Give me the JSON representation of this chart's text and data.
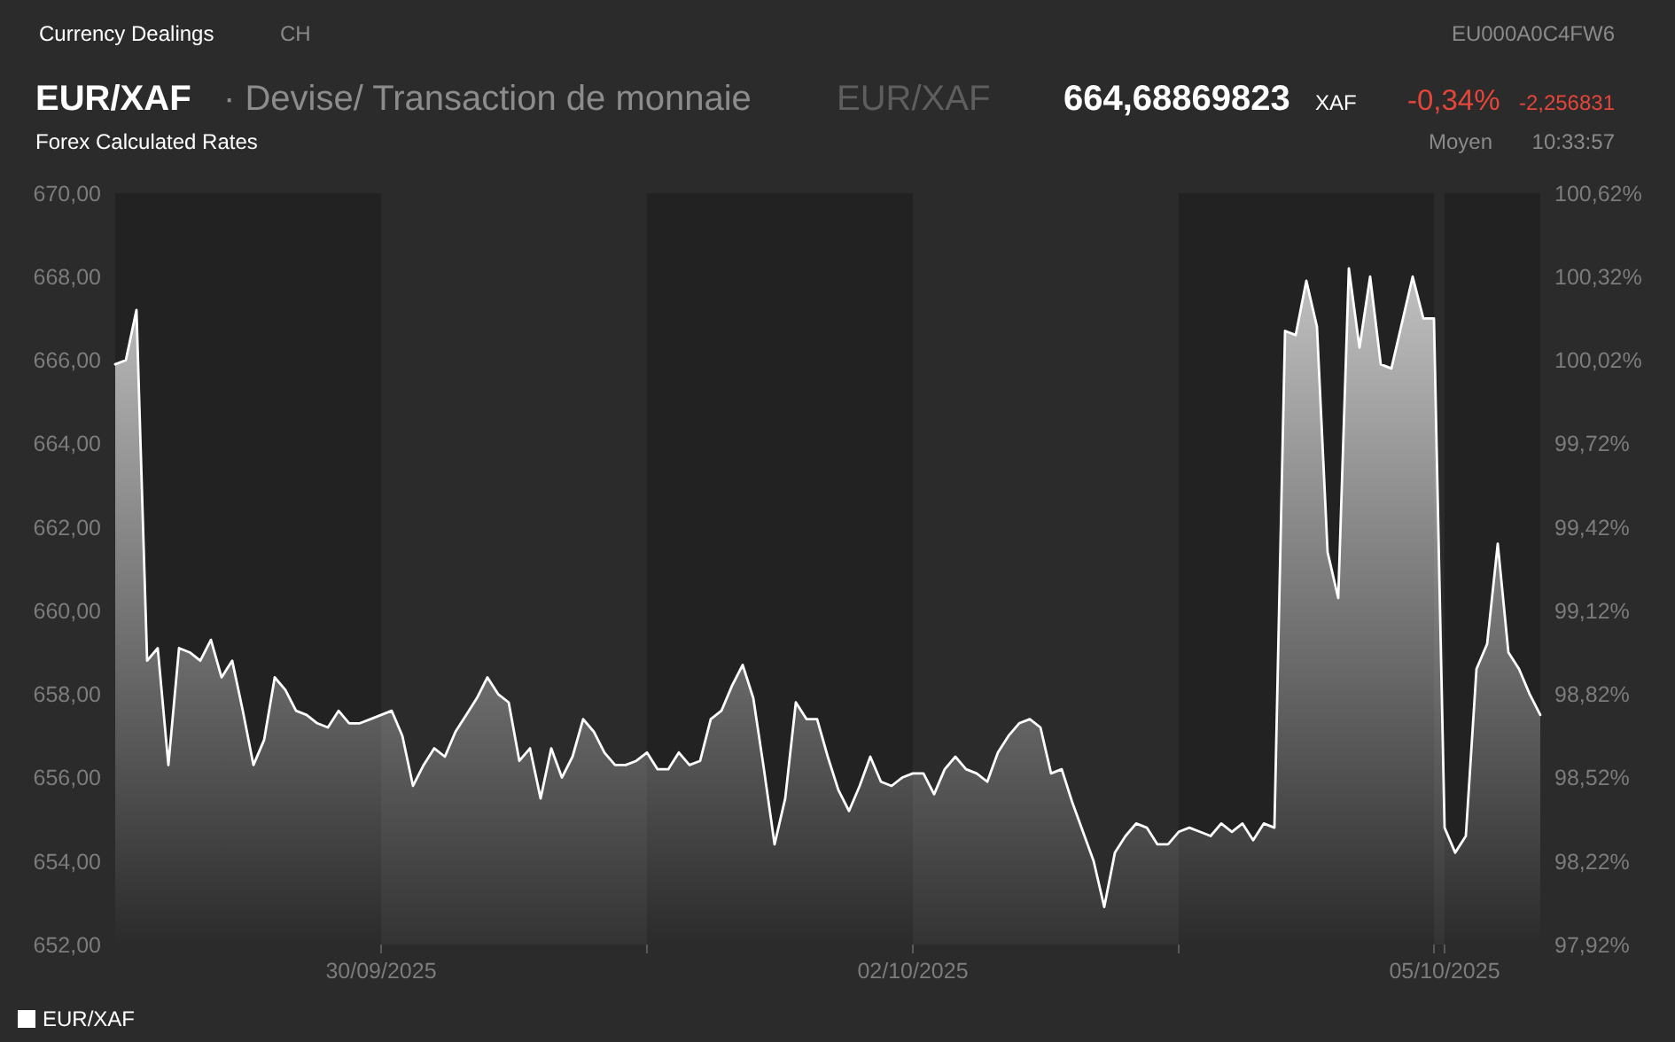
{
  "chart_data": {
    "type": "area",
    "title": "EUR/XAF",
    "subtitle": "· Devise/ Transaction de monnaie",
    "annotations": [
      "Currency Dealings",
      "CH",
      "EU000A0C4FW6",
      "EUR/XAF",
      "664,68869823",
      "XAF",
      "-0,34%",
      "-2,256831",
      "Forex Calculated Rates",
      "Moyen",
      "10:33:57"
    ],
    "categories": [
      null,
      null,
      null,
      null,
      null,
      null,
      null,
      null,
      null,
      null,
      null,
      null,
      null,
      null,
      null,
      null,
      null,
      null,
      null,
      null,
      null,
      null,
      null,
      null,
      null,
      "30/09/2025",
      null,
      null,
      null,
      null,
      null,
      null,
      null,
      null,
      null,
      null,
      null,
      null,
      null,
      null,
      null,
      null,
      null,
      null,
      null,
      null,
      null,
      null,
      null,
      null,
      null,
      null,
      null,
      null,
      null,
      null,
      null,
      null,
      null,
      null,
      null,
      null,
      null,
      null,
      null,
      null,
      null,
      null,
      null,
      null,
      null,
      null,
      null,
      null,
      null,
      "02/10/2025",
      null,
      null,
      null,
      null,
      null,
      null,
      null,
      null,
      null,
      null,
      null,
      null,
      null,
      null,
      null,
      null,
      null,
      null,
      null,
      null,
      null,
      null,
      null,
      null,
      null,
      null,
      null,
      null,
      null,
      null,
      null,
      null,
      null,
      null,
      null,
      null,
      null,
      null,
      null,
      null,
      null,
      null,
      null,
      null,
      null,
      null,
      null,
      null,
      null,
      "05/10/2025",
      null,
      null,
      null,
      null,
      null,
      null,
      null,
      null,
      null
    ],
    "series": [
      {
        "name": "EUR/XAF",
        "color": "#ffffff",
        "values": [
          665.9,
          666.0,
          667.2,
          658.8,
          659.1,
          656.3,
          659.1,
          659.0,
          658.8,
          659.3,
          658.4,
          658.8,
          657.6,
          656.3,
          656.9,
          658.4,
          658.1,
          657.6,
          657.5,
          657.3,
          657.2,
          657.6,
          657.3,
          657.3,
          657.4,
          657.5,
          657.6,
          657.0,
          655.8,
          656.3,
          656.7,
          656.5,
          657.1,
          657.5,
          657.9,
          658.4,
          658.0,
          657.8,
          656.4,
          656.7,
          655.5,
          656.7,
          656.0,
          656.5,
          657.4,
          657.1,
          656.6,
          656.3,
          656.3,
          656.4,
          656.6,
          656.2,
          656.2,
          656.6,
          656.3,
          656.4,
          657.4,
          657.6,
          658.2,
          658.7,
          657.9,
          656.2,
          654.4,
          655.5,
          657.8,
          657.4,
          657.4,
          656.5,
          655.7,
          655.2,
          655.8,
          656.5,
          655.9,
          655.8,
          656.0,
          656.1,
          656.1,
          655.6,
          656.2,
          656.5,
          656.2,
          656.1,
          655.9,
          656.6,
          657.0,
          657.3,
          657.4,
          657.2,
          656.1,
          656.2,
          655.4,
          654.7,
          654.0,
          652.9,
          654.2,
          654.6,
          654.9,
          654.8,
          654.4,
          654.4,
          654.7,
          654.8,
          654.7,
          654.6,
          654.9,
          654.7,
          654.9,
          654.5,
          654.9,
          654.8,
          666.7,
          666.6,
          667.9,
          666.8,
          661.4,
          660.3,
          668.2,
          666.3,
          668.0,
          665.9,
          665.8,
          666.9,
          668.0,
          667.0,
          667.0,
          654.8,
          654.2,
          654.6,
          658.6,
          659.2,
          661.6,
          659.0,
          658.6,
          658.0,
          657.5
        ]
      }
    ],
    "ylim": [
      652,
      670
    ],
    "yticks": [
      {
        "value": 652,
        "label": "652,00"
      },
      {
        "value": 654,
        "label": "654,00"
      },
      {
        "value": 656,
        "label": "656,00"
      },
      {
        "value": 658,
        "label": "658,00"
      },
      {
        "value": 660,
        "label": "660,00"
      },
      {
        "value": 662,
        "label": "662,00"
      },
      {
        "value": 664,
        "label": "664,00"
      },
      {
        "value": 666,
        "label": "666,00"
      },
      {
        "value": 668,
        "label": "668,00"
      },
      {
        "value": 670,
        "label": "670,00"
      }
    ],
    "y2lim": [
      97.92,
      100.62
    ],
    "y2ticks": [
      {
        "value": 97.92,
        "label": "97,92%"
      },
      {
        "value": 98.22,
        "label": "98,22%"
      },
      {
        "value": 98.52,
        "label": "98,52%"
      },
      {
        "value": 98.82,
        "label": "98,82%"
      },
      {
        "value": 99.12,
        "label": "99,12%"
      },
      {
        "value": 99.42,
        "label": "99,42%"
      },
      {
        "value": 99.72,
        "label": "99,72%"
      },
      {
        "value": 100.02,
        "label": "100,02%"
      },
      {
        "value": 100.32,
        "label": "100,32%"
      },
      {
        "value": 100.62,
        "label": "100,62%"
      }
    ],
    "legend": "bottom left"
  }
}
